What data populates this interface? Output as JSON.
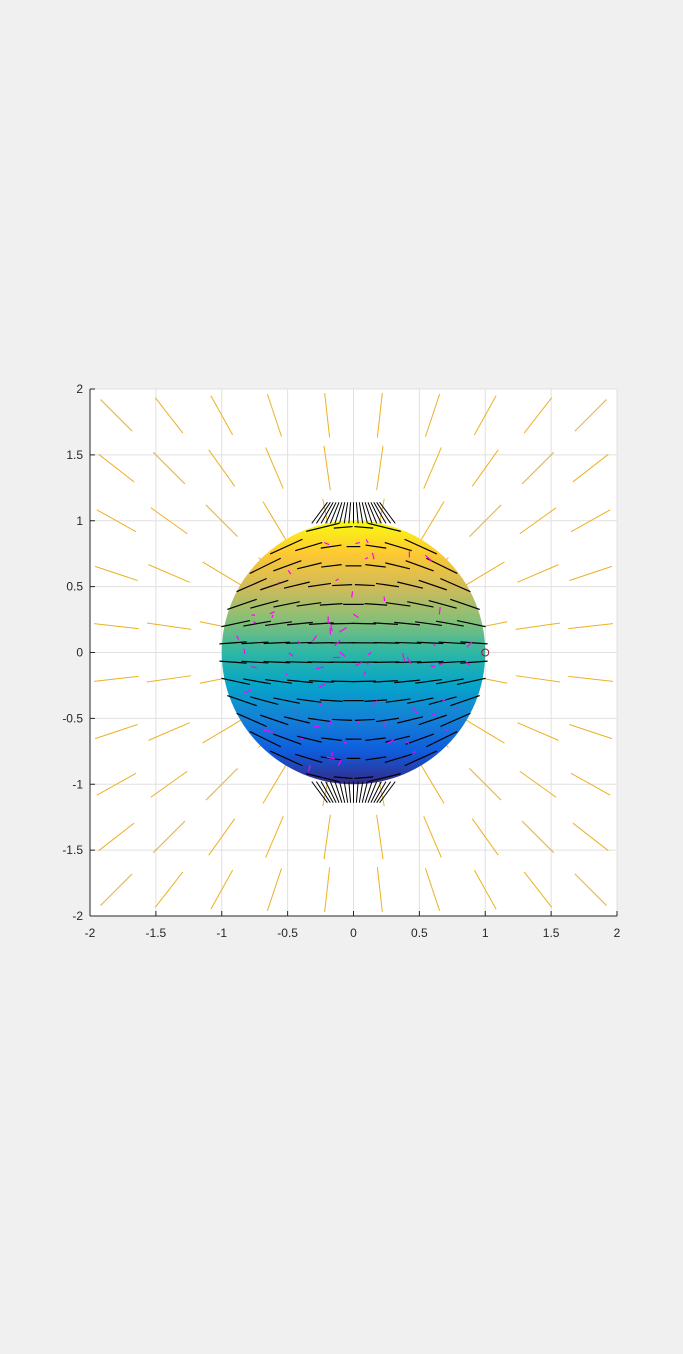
{
  "chart_data": {
    "type": "vector-field",
    "title": "",
    "xlabel": "",
    "ylabel": "",
    "xlim": [
      -2,
      2
    ],
    "ylim": [
      -2,
      2
    ],
    "grid": true,
    "xticks": [
      "-2",
      "-1.5",
      "-1",
      "-0.5",
      "0",
      "0.5",
      "1",
      "1.5",
      "2"
    ],
    "yticks": [
      "2",
      "1.5",
      "1",
      "0.5",
      "0",
      "-0.5",
      "-1",
      "-1.5",
      "-2"
    ],
    "xtick_values": [
      -2,
      -1.5,
      -1,
      -0.5,
      0,
      0.5,
      1,
      1.5,
      2
    ],
    "ytick_values": [
      2,
      1.5,
      1,
      0.5,
      0,
      -0.5,
      -1,
      -1.5,
      -2
    ],
    "sphere": {
      "center": [
        0,
        0
      ],
      "radius": 1,
      "colormap": "parula",
      "color_by": "y"
    },
    "outer_field": {
      "color": "#EDB120",
      "grid_x": [
        -2,
        -1.6,
        -1.2,
        -0.8,
        -0.4,
        0,
        0.4,
        0.8,
        1.2,
        1.6
      ],
      "grid_y": [
        -1.8,
        -1.4,
        -1.0,
        -0.6,
        -0.2,
        0.2,
        0.6,
        1.0,
        1.4,
        1.8
      ],
      "segment_length": 0.34
    },
    "surface_field": {
      "color": "#000000",
      "rows": 13
    },
    "perturbation_field": {
      "color": "#FF00FF",
      "count": 70
    },
    "marker": {
      "x": 1,
      "y": 0,
      "shape": "circle",
      "color": "#A2142F"
    },
    "colors": {
      "background": "#f0f0f0",
      "axes_bg": "#ffffff",
      "grid": "#e0e0e0",
      "axis": "#262626",
      "parula": [
        "#352A87",
        "#0F5CDD",
        "#1481D6",
        "#06A4CA",
        "#2EB7A4",
        "#87BF77",
        "#D1BB59",
        "#FEC832",
        "#F9FB0E"
      ]
    }
  }
}
